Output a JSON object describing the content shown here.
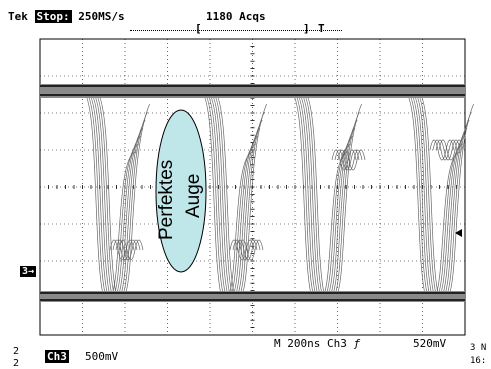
{
  "header": {
    "brand": "Tek",
    "run_state": "Stop:",
    "sample_rate": "250MS/s",
    "acquisitions": "1180 Acqs",
    "trigger_bracket_left": "[",
    "trigger_bracket_right": "]",
    "trigger_marker": "T"
  },
  "scope": {
    "channel_marker": "3→",
    "annotation_line1": "Perfektes",
    "annotation_line2": "Auge"
  },
  "footer": {
    "left_fragment_top": "2",
    "left_fragment_bottom": "2",
    "channel": "Ch3",
    "volts_per_div": "500mV",
    "timebase": "M  200ns  Ch3",
    "trigger_slope_symbol": "ƒ",
    "trigger_level": "520mV",
    "right_fragment_top": "3 N",
    "right_fragment_bottom": "16:"
  },
  "colors": {
    "trace": "#555555",
    "grid": "#000000",
    "ellipse_fill": "#bfe6e8",
    "ellipse_stroke": "#000000"
  }
}
